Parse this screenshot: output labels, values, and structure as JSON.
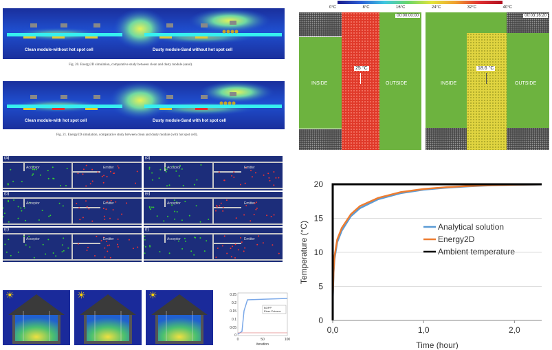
{
  "solar_panel_sim": {
    "fig20_caption": "Fig. 20. Energy2D simulation, comparative study between clean and dusty module (sand).",
    "fig21_caption": "Fig. 21. Energy2D simulation, comparative study between clean and dusty module (with hot spot cell).",
    "label_clean_no_hotspot": "Clean module-without hot spot cell",
    "label_dusty_no_hotspot": "Dusty module-Sand without hot spot cell",
    "label_clean_hotspot": "Clean module-with hot spot cell",
    "label_dusty_hotspot": "Dusty module-Sand with hot spot cell"
  },
  "wall_sim": {
    "colorbar_ticks": [
      "0°C",
      "8°C",
      "16°C",
      "24°C",
      "32°C",
      "40°C"
    ],
    "left": {
      "time": "00:00:00:00",
      "inside": "INSIDE",
      "outside": "OUTSIDE",
      "temp": "25 °C"
    },
    "right": {
      "time": "00:03:16:20",
      "inside": "INSIDE",
      "outside": "OUTSIDE",
      "temp": "18.6 °C"
    }
  },
  "particles": {
    "panel_labels": [
      "(a)",
      "(b)",
      "(c)",
      "(d)",
      "(e)",
      "(f)"
    ],
    "acceptor": "Acceptor",
    "emitter": "Emitter"
  },
  "house_plot": {
    "y_ticks": [
      "0.25",
      "0.2",
      "0.15",
      "0.1",
      "0.05",
      "0"
    ],
    "x_ticks": [
      "0",
      "50",
      "100"
    ],
    "x_label": "iteration",
    "legend": [
      "BOPP",
      "Eiran Poisson"
    ]
  },
  "chart_data": {
    "type": "line",
    "xlabel": "Time (hour)",
    "ylabel": "Temperature  (°C)",
    "x_ticks": [
      "0,0",
      "1,0",
      "2,0"
    ],
    "y_ticks": [
      "0",
      "5",
      "10",
      "15",
      "20"
    ],
    "xlim": [
      0,
      2.3
    ],
    "ylim": [
      0,
      20
    ],
    "series": [
      {
        "name": "Analytical solution",
        "color": "#5b9bd5",
        "x": [
          0,
          0.001,
          0.01,
          0.02,
          0.05,
          0.1,
          0.2,
          0.3,
          0.5,
          0.75,
          1.0,
          1.25,
          1.5,
          1.75,
          2.0,
          2.3
        ],
        "y": [
          0,
          3.0,
          7.0,
          9.0,
          11.5,
          13.2,
          15.3,
          16.5,
          17.8,
          18.7,
          19.2,
          19.5,
          19.7,
          19.85,
          19.92,
          19.97
        ]
      },
      {
        "name": "Energy2D",
        "color": "#ed7d31",
        "x": [
          0,
          0.001,
          0.01,
          0.02,
          0.05,
          0.1,
          0.2,
          0.3,
          0.5,
          0.75,
          1.0,
          1.25,
          1.5,
          1.75,
          2.0,
          2.3
        ],
        "y": [
          0,
          3.3,
          7.4,
          9.4,
          11.9,
          13.6,
          15.6,
          16.8,
          18.0,
          18.85,
          19.3,
          19.58,
          19.75,
          19.88,
          19.94,
          19.98
        ]
      },
      {
        "name": "Ambient temperature",
        "color": "#000000",
        "x": [
          0,
          0.0001,
          2.3
        ],
        "y": [
          0,
          20,
          20
        ]
      }
    ]
  }
}
